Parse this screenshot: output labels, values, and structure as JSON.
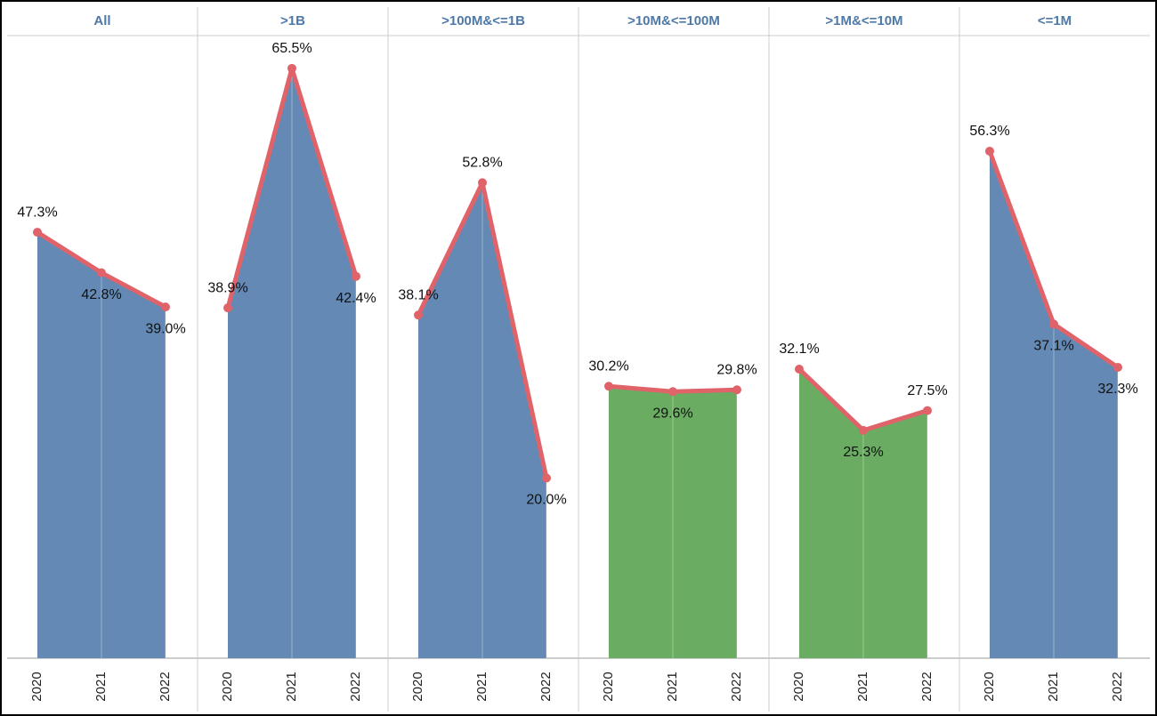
{
  "chart_data": {
    "type": "area",
    "categories": [
      "2020",
      "2021",
      "2022"
    ],
    "ylim": [
      0,
      72
    ],
    "line_color": "#e0636a",
    "series": [
      {
        "name": "All",
        "color": "#6389b4",
        "values": [
          47.3,
          42.8,
          39.0
        ],
        "value_labels": [
          "47.3%",
          "42.8%",
          "39.0%"
        ]
      },
      {
        "name": ">1B",
        "color": "#6389b4",
        "values": [
          38.9,
          65.5,
          42.4
        ],
        "value_labels": [
          "38.9%",
          "65.5%",
          "42.4%"
        ]
      },
      {
        "name": ">100M&<=1B",
        "color": "#6389b4",
        "values": [
          38.1,
          52.8,
          20.0
        ],
        "value_labels": [
          "38.1%",
          "52.8%",
          "20.0%"
        ]
      },
      {
        "name": ">10M&<=100M",
        "color": "#6aad62",
        "values": [
          30.2,
          29.6,
          29.8
        ],
        "value_labels": [
          "30.2%",
          "29.6%",
          "29.8%"
        ]
      },
      {
        "name": ">1M&<=10M",
        "color": "#6aad62",
        "values": [
          32.1,
          25.3,
          27.5
        ],
        "value_labels": [
          "32.1%",
          "25.3%",
          "27.5%"
        ]
      },
      {
        "name": "<=1M",
        "color": "#6389b4",
        "values": [
          56.3,
          37.1,
          32.3
        ],
        "value_labels": [
          "56.3%",
          "37.1%",
          "32.3%"
        ]
      }
    ]
  }
}
